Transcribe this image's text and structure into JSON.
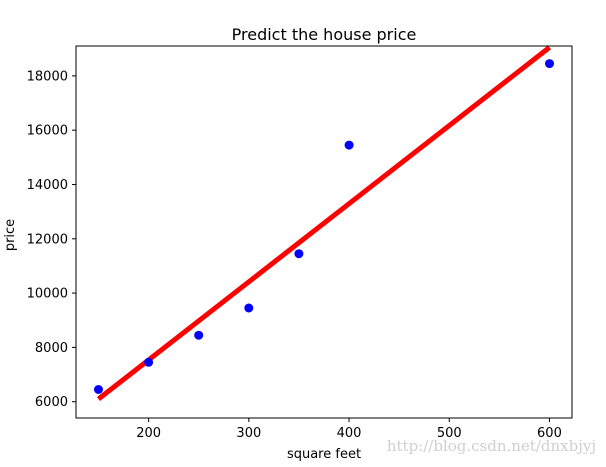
{
  "chart_data": {
    "type": "scatter",
    "title": "Predict the house price",
    "xlabel": "square feet",
    "ylabel": "price",
    "xlim": [
      127.5,
      622.5
    ],
    "ylim": [
      5400,
      19100
    ],
    "xticks": [
      200,
      300,
      400,
      500,
      600
    ],
    "yticks": [
      6000,
      8000,
      10000,
      12000,
      14000,
      16000,
      18000
    ],
    "grid": false,
    "legend": "none",
    "series": [
      {
        "type": "scatter",
        "color": "#0000ff",
        "marker": "circle",
        "points": [
          {
            "x": 150,
            "y": 6450
          },
          {
            "x": 200,
            "y": 7450
          },
          {
            "x": 250,
            "y": 8450
          },
          {
            "x": 300,
            "y": 9450
          },
          {
            "x": 350,
            "y": 11450
          },
          {
            "x": 400,
            "y": 15450
          },
          {
            "x": 600,
            "y": 18450
          }
        ]
      },
      {
        "type": "line",
        "color": "#ff0000",
        "style": "solid",
        "points": [
          {
            "x": 150,
            "y": 6100
          },
          {
            "x": 600,
            "y": 19050
          }
        ]
      }
    ]
  },
  "watermark": "http://blog.csdn.net/dnxbjyj"
}
